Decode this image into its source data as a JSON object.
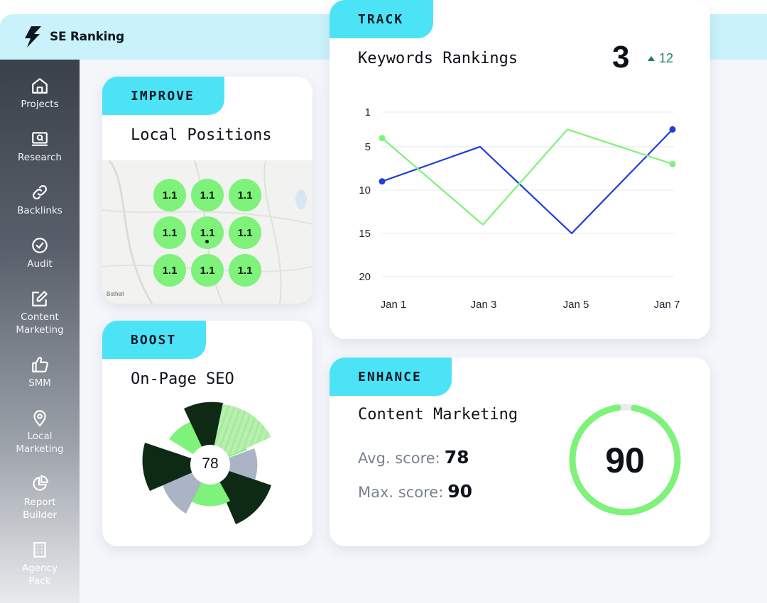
{
  "brand": {
    "name": "SE Ranking"
  },
  "sidebar": {
    "items": [
      {
        "label": "Projects",
        "icon": "home-icon"
      },
      {
        "label": "Research",
        "icon": "monitor-search-icon"
      },
      {
        "label": "Backlinks",
        "icon": "link-icon"
      },
      {
        "label": "Audit",
        "icon": "check-circle-icon"
      },
      {
        "label": "Content Marketing",
        "icon": "edit-icon"
      },
      {
        "label": "SMM",
        "icon": "thumbs-up-icon"
      },
      {
        "label": "Local Marketing",
        "icon": "map-pin-icon"
      },
      {
        "label": "Report Builder",
        "icon": "pie-chart-icon"
      },
      {
        "label": "Agency Pack",
        "icon": "building-icon"
      }
    ]
  },
  "local_positions": {
    "tag": "IMPROVE",
    "title": "Local Positions",
    "map_labels": [
      "Bothell"
    ],
    "pins": [
      "1.1",
      "1.1",
      "1.1",
      "1.1",
      "1.1",
      "1.1",
      "1.1",
      "1.1",
      "1.1"
    ],
    "pin_color": "#7ef27a"
  },
  "onpage": {
    "tag": "BOOST",
    "title": "On-Page SEO",
    "score": "78",
    "colors": {
      "dark": "#0f2a14",
      "green": "#7ef27a",
      "light_green": "#b8f0b0",
      "gray": "#aab4c4"
    }
  },
  "track": {
    "tag": "TRACK",
    "title": "Keywords Rankings",
    "value": "3",
    "delta": "12",
    "delta_color": "#1f7f57",
    "chart_data": {
      "type": "line",
      "x": [
        "Jan 1",
        "Jan 3",
        "Jan 5",
        "Jan 7"
      ],
      "y_ticks": [
        1,
        5,
        10,
        15,
        20
      ],
      "ylim": [
        20,
        1
      ],
      "y_inverted": true,
      "grid": true,
      "series": [
        {
          "color": "#1f3fd6",
          "values": [
            9,
            5,
            15,
            3
          ]
        },
        {
          "color": "#7ef27a",
          "values": [
            4,
            14,
            3,
            7
          ]
        }
      ]
    }
  },
  "content_marketing": {
    "tag": "ENHANCE",
    "title": "Content Marketing",
    "avg_label": "Avg. score:",
    "avg_value": "78",
    "max_label": "Max. score:",
    "max_value": "90",
    "gauge_value": "90",
    "gauge_fraction": 0.95,
    "gauge_color": "#7ef27a"
  }
}
